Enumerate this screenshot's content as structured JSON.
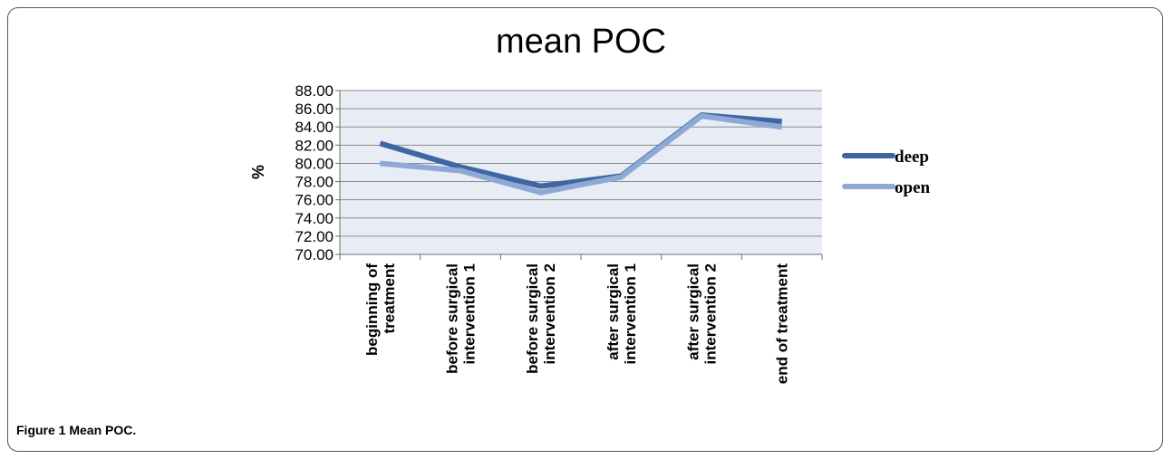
{
  "caption": {
    "label": "Figure 1",
    "text": "Mean POC."
  },
  "chart_data": {
    "type": "line",
    "title": "mean POC",
    "xlabel": "",
    "ylabel": "%",
    "ylim": [
      70,
      88
    ],
    "ytick_step": 2,
    "ytick_labels": [
      "70.00",
      "72.00",
      "74.00",
      "76.00",
      "78.00",
      "80.00",
      "82.00",
      "84.00",
      "86.00",
      "88.00"
    ],
    "categories": [
      [
        "beginning of",
        "treatment"
      ],
      [
        "before surgical",
        "intervention 1"
      ],
      [
        "before surgical",
        "intervention 2"
      ],
      [
        "after surgical",
        "intervention 1"
      ],
      [
        "after surgical",
        "intervention 2"
      ],
      [
        "end of treatment"
      ]
    ],
    "series": [
      {
        "name": "deep",
        "color": "#3f66a3",
        "values": [
          82.2,
          79.6,
          77.5,
          78.6,
          85.3,
          84.6
        ]
      },
      {
        "name": "open",
        "color": "#8ea9d6",
        "values": [
          80.0,
          79.2,
          76.8,
          78.5,
          85.2,
          84.0
        ]
      }
    ],
    "grid": true,
    "plot_background": "#e7ecf5",
    "legend_position": "right"
  }
}
